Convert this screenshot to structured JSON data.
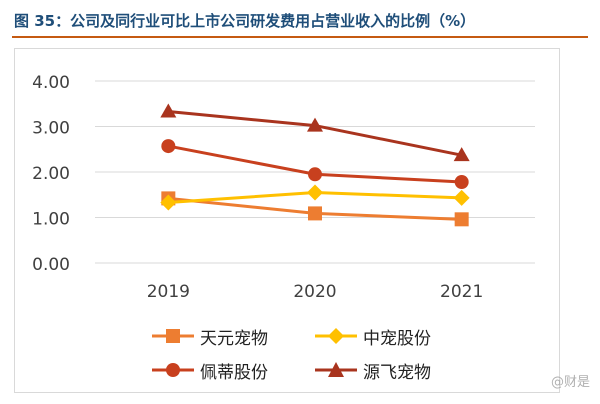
{
  "title": "图 35：公司及同行业可比上市公司研发费用占营业收入的比例（%）",
  "watermark": "@财是",
  "chart_data": {
    "type": "line",
    "categories": [
      "2019",
      "2020",
      "2021"
    ],
    "ylim": [
      0,
      4
    ],
    "yticks": [
      "0.00",
      "1.00",
      "2.00",
      "3.00",
      "4.00"
    ],
    "grid": true,
    "legend_position": "bottom",
    "series": [
      {
        "name": "天元宠物",
        "values": [
          1.42,
          1.09,
          0.96
        ],
        "color": "#ed7d31",
        "marker": "square"
      },
      {
        "name": "中宠股份",
        "values": [
          1.33,
          1.55,
          1.43
        ],
        "color": "#ffc000",
        "marker": "diamond"
      },
      {
        "name": "佩蒂股份",
        "values": [
          2.57,
          1.95,
          1.78
        ],
        "color": "#c8401e",
        "marker": "circle"
      },
      {
        "name": "源飞宠物",
        "values": [
          3.33,
          3.02,
          2.37
        ],
        "color": "#a9341e",
        "marker": "triangle"
      }
    ]
  }
}
